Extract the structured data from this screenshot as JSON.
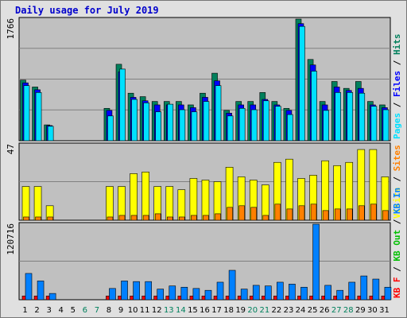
{
  "title": "Daily usage for July 2019",
  "colors": {
    "hits": "#00805c",
    "files": "#0000ff",
    "pages": "#00e0ff",
    "visits": "#ffff00",
    "sites": "#ff8000",
    "kbin": "#0080ff",
    "kbout": "#00c000",
    "kbf": "#ff0000",
    "weekday": "#000000",
    "weekend": "#00805c",
    "plot_bg": "#c0c0c0",
    "grid": "#808080",
    "border": "#000000"
  },
  "chart_data": [
    {
      "type": "bar",
      "panel": "hits-files-pages",
      "ylabel_max": "1766",
      "ylim": [
        0,
        1766
      ],
      "legend": [
        {
          "key": "pages",
          "label": "Pages"
        },
        {
          "key": "sep1",
          "label": " / "
        },
        {
          "key": "files",
          "label": "Files"
        },
        {
          "key": "sep2",
          "label": " / "
        },
        {
          "key": "hits",
          "label": "Hits"
        }
      ],
      "days": [
        "1",
        "2",
        "3",
        "4",
        "5",
        "6",
        "7",
        "8",
        "9",
        "10",
        "11",
        "12",
        "13",
        "14",
        "15",
        "16",
        "17",
        "18",
        "19",
        "20",
        "21",
        "22",
        "23",
        "24",
        "25",
        "26",
        "27",
        "28",
        "29",
        "30",
        "31"
      ],
      "series": [
        {
          "key": "hits",
          "values": [
            880,
            780,
            230,
            0,
            0,
            0,
            0,
            470,
            1110,
            690,
            640,
            570,
            570,
            570,
            520,
            690,
            980,
            440,
            570,
            570,
            700,
            570,
            470,
            1766,
            1180,
            570,
            860,
            760,
            860,
            570,
            520
          ]
        },
        {
          "key": "files",
          "values": [
            840,
            740,
            220,
            0,
            0,
            0,
            0,
            440,
            1000,
            630,
            580,
            520,
            520,
            520,
            480,
            630,
            870,
            400,
            520,
            520,
            600,
            520,
            440,
            1700,
            1100,
            520,
            780,
            730,
            760,
            520,
            480
          ]
        },
        {
          "key": "pages",
          "values": [
            800,
            700,
            210,
            0,
            0,
            0,
            0,
            360,
            1040,
            600,
            550,
            420,
            530,
            450,
            420,
            570,
            800,
            360,
            470,
            450,
            580,
            500,
            380,
            1660,
            1010,
            440,
            700,
            700,
            690,
            500,
            450
          ]
        }
      ]
    },
    {
      "type": "bar",
      "panel": "visits-sites",
      "ylabel_max": "47",
      "ylim": [
        0,
        47
      ],
      "legend": [
        {
          "key": "visits",
          "label": "Visits"
        },
        {
          "key": "sep3",
          "label": " / "
        },
        {
          "key": "sites",
          "label": "Sites"
        }
      ],
      "series": [
        {
          "key": "visits",
          "values": [
            21,
            21,
            9,
            0,
            0,
            0,
            0,
            21,
            21,
            29,
            30,
            21,
            21,
            19,
            26,
            25,
            24,
            33,
            27,
            25,
            22,
            36,
            38,
            26,
            28,
            37,
            34,
            36,
            44,
            44,
            27
          ]
        },
        {
          "key": "sites",
          "values": [
            2,
            2,
            2,
            0,
            0,
            0,
            0,
            2,
            3,
            3,
            3,
            4,
            2,
            2,
            3,
            3,
            4,
            8,
            9,
            8,
            3,
            10,
            7,
            9,
            10,
            6,
            7,
            7,
            9,
            10,
            6
          ]
        }
      ]
    },
    {
      "type": "bar",
      "panel": "kbytes",
      "ylabel_max": "120716",
      "ylim": [
        0,
        120716
      ],
      "legend": [
        {
          "key": "kbf",
          "label": "KB F"
        },
        {
          "key": "sep4",
          "label": " / "
        },
        {
          "key": "kbout",
          "label": "KB Out"
        },
        {
          "key": "sep5",
          "label": " / "
        },
        {
          "key": "kbin",
          "label": "KB In"
        }
      ],
      "series": [
        {
          "key": "kbf",
          "values": [
            6000,
            6000,
            6000,
            0,
            0,
            0,
            0,
            6000,
            6000,
            6000,
            6000,
            6000,
            6000,
            6000,
            6000,
            6000,
            6000,
            6000,
            6000,
            6000,
            6000,
            6000,
            6000,
            6000,
            6000,
            6000,
            6000,
            6000,
            6000,
            6000,
            6000
          ]
        },
        {
          "key": "kbout",
          "values": [
            0,
            0,
            0,
            0,
            0,
            0,
            0,
            0,
            0,
            0,
            0,
            0,
            0,
            0,
            0,
            0,
            0,
            0,
            0,
            0,
            0,
            0,
            0,
            0,
            0,
            0,
            0,
            0,
            0,
            0,
            0
          ]
        },
        {
          "key": "kbin",
          "values": [
            42000,
            30000,
            10000,
            0,
            0,
            0,
            0,
            18000,
            30000,
            29000,
            29000,
            17000,
            22000,
            20000,
            18000,
            15000,
            28000,
            47000,
            17000,
            23000,
            22000,
            28000,
            25000,
            20000,
            120716,
            23000,
            15000,
            28000,
            38000,
            33000,
            20000
          ]
        }
      ]
    }
  ]
}
